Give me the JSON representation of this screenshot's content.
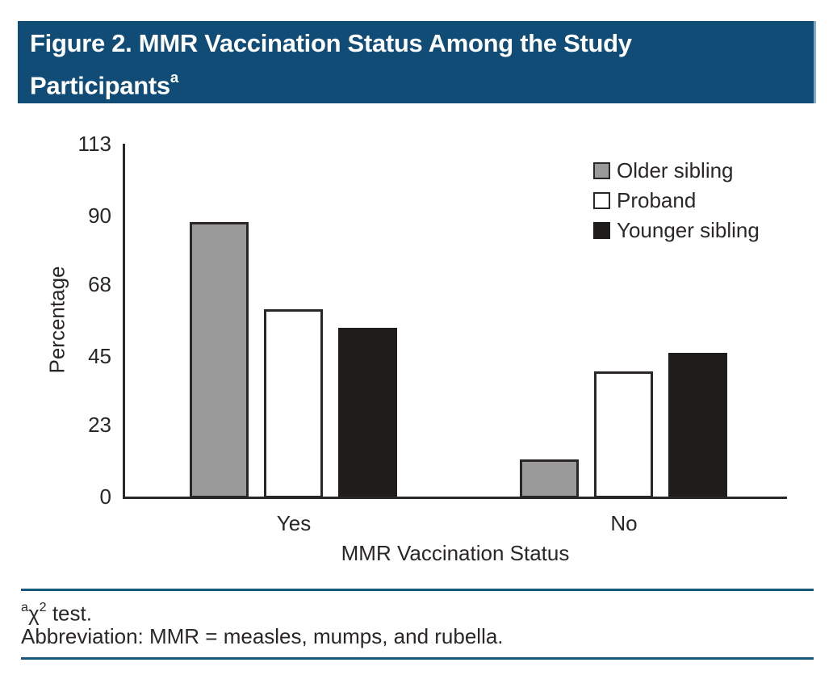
{
  "banner": {
    "title": "Figure 2. MMR Vaccination Status Among the Study",
    "title_line2": "Participants",
    "title_superscript": "a",
    "background_color": "#114C76",
    "text_color": "#FFFFFF"
  },
  "chart_data": {
    "type": "bar",
    "title": "Figure 2. MMR Vaccination Status Among the Study Participants",
    "categories": [
      "Yes",
      "No"
    ],
    "series": [
      {
        "name": "Older sibling",
        "values": [
          88,
          12
        ],
        "color": "#9A9A9A",
        "border_color": "#2B2727"
      },
      {
        "name": "Proband",
        "values": [
          60,
          40
        ],
        "color": "#FFFFFF",
        "border_color": "#2B2727"
      },
      {
        "name": "Younger sibling",
        "values": [
          54,
          46
        ],
        "color": "#1F1C1C",
        "border_color": "#1F1C1C"
      }
    ],
    "xlabel": "MMR Vaccination Status",
    "ylabel": "Percentage",
    "yticks": [
      0,
      23,
      45,
      68,
      90,
      113
    ],
    "ylim": [
      0,
      113
    ],
    "legend_position": "top-right",
    "grid": false,
    "axis_color": "#2B2727"
  },
  "footer": {
    "footnote": {
      "sup_a": "a",
      "chi": "χ",
      "sup_2": "2",
      "rest": " test."
    },
    "abbreviation": "Abbreviation: MMR = measles, mumps, and rubella.",
    "rule_color": "#19587E"
  }
}
